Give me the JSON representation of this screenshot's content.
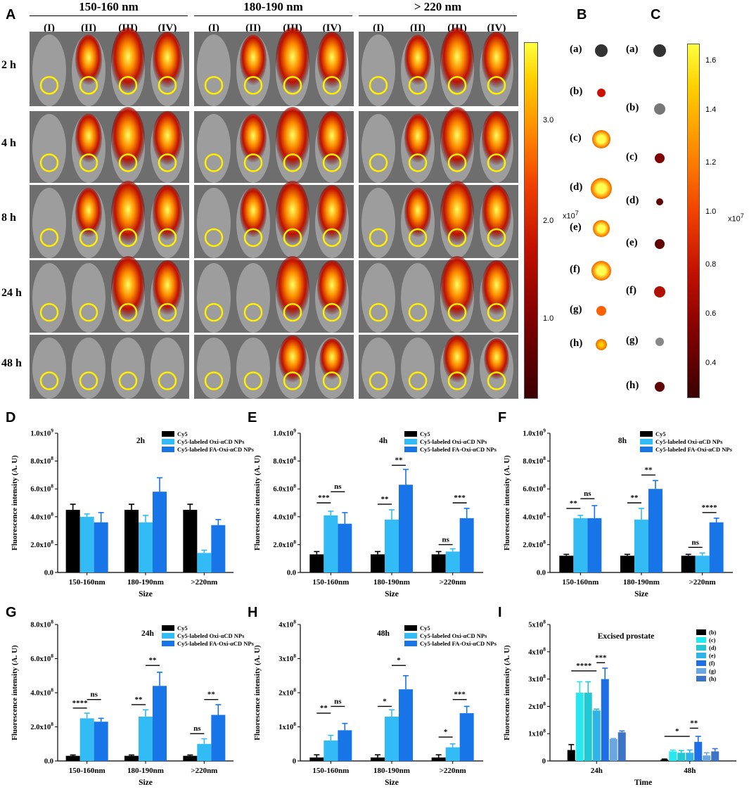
{
  "panel_letters": [
    "A",
    "B",
    "C",
    "D",
    "E",
    "F",
    "G",
    "H",
    "I"
  ],
  "imaging": {
    "groups": [
      "150-160 nm",
      "180-190 nm",
      "> 220 nm"
    ],
    "mice": [
      "(I)",
      "(II)",
      "(III)",
      "(IV)"
    ],
    "times": [
      "2 h",
      "4 h",
      "8 h",
      "24 h",
      "48 h"
    ],
    "colorbar": {
      "ticks": [
        "3.0",
        "2.0",
        "1.0"
      ],
      "unit": "x10",
      "exponent": "7"
    }
  },
  "organs_B": [
    "(a)",
    "(b)",
    "(c)",
    "(d)",
    "(e)",
    "(f)",
    "(g)",
    "(h)"
  ],
  "organs_C": [
    "(a)",
    "(b)",
    "(c)",
    "(d)",
    "(e)",
    "(f)",
    "(g)",
    "(h)"
  ],
  "colorbar_C": {
    "ticks": [
      "1.6",
      "1.4",
      "1.2",
      "1.0",
      "0.8",
      "0.6",
      "0.4"
    ],
    "unit": "x10",
    "exponent": "7"
  },
  "colors": {
    "cy5": "#000000",
    "oxi": "#33bbf5",
    "fa": "#1875e8"
  },
  "chart_data": [
    {
      "id": "D",
      "type": "bar",
      "title": "2h",
      "ylabel": "Fluorescence intensity (A. U)",
      "xlabel": "Size",
      "categories": [
        "150-160nm",
        "180-190nm",
        ">220nm"
      ],
      "yticks": [
        "0.0",
        "2.0x10",
        "4.0x10",
        "6.0x10",
        "8.0x10",
        "1.0x10"
      ],
      "yexp": [
        "",
        "8",
        "8",
        "8",
        "8",
        "9"
      ],
      "ylim": [
        0,
        10
      ],
      "legend": [
        "Cy5",
        "Cy5-labeled Oxi-αCD NPs",
        "Cy5-labeled FA-Oxi-αCD NPs"
      ],
      "series": [
        {
          "name": "Cy5",
          "values": [
            4.5,
            4.5,
            4.5
          ],
          "err": [
            0.4,
            0.4,
            0.4
          ]
        },
        {
          "name": "Cy5-labeled Oxi-αCD NPs",
          "values": [
            4.0,
            3.6,
            1.4
          ],
          "err": [
            0.2,
            0.5,
            0.2
          ]
        },
        {
          "name": "Cy5-labeled FA-Oxi-αCD NPs",
          "values": [
            3.6,
            5.8,
            3.4
          ],
          "err": [
            0.7,
            1.0,
            0.4
          ]
        }
      ],
      "sig": []
    },
    {
      "id": "E",
      "type": "bar",
      "title": "4h",
      "ylabel": "Fluorescence intensity (A. U)",
      "xlabel": "Size",
      "categories": [
        "150-160nm",
        "180-190nm",
        ">220nm"
      ],
      "yticks": [
        "0.0",
        "2.0x10",
        "4.0x10",
        "6.0x10",
        "8.0x10",
        "1.0x10"
      ],
      "yexp": [
        "",
        "8",
        "8",
        "8",
        "8",
        "9"
      ],
      "ylim": [
        0,
        10
      ],
      "legend": [
        "Cy5",
        "Cy5-labeled Oxi-αCD NPs",
        "Cy5-labeled FA-Oxi-αCD NPs"
      ],
      "series": [
        {
          "name": "Cy5",
          "values": [
            1.3,
            1.3,
            1.3
          ],
          "err": [
            0.2,
            0.2,
            0.2
          ]
        },
        {
          "name": "Cy5-labeled Oxi-αCD NPs",
          "values": [
            4.1,
            3.8,
            1.5
          ],
          "err": [
            0.3,
            0.7,
            0.2
          ]
        },
        {
          "name": "Cy5-labeled FA-Oxi-αCD NPs",
          "values": [
            3.5,
            6.3,
            3.9
          ],
          "err": [
            0.8,
            1.1,
            0.7
          ]
        }
      ],
      "sig": [
        {
          "cat": 0,
          "from": 0,
          "to": 1,
          "y": 5.0,
          "text": "***"
        },
        {
          "cat": 0,
          "from": 1,
          "to": 2,
          "y": 5.8,
          "text": "ns"
        },
        {
          "cat": 1,
          "from": 0,
          "to": 1,
          "y": 4.9,
          "text": "**"
        },
        {
          "cat": 1,
          "from": 1,
          "to": 2,
          "y": 7.7,
          "text": "**"
        },
        {
          "cat": 2,
          "from": 0,
          "to": 1,
          "y": 2.0,
          "text": "ns"
        },
        {
          "cat": 2,
          "from": 1,
          "to": 2,
          "y": 5.0,
          "text": "***"
        }
      ]
    },
    {
      "id": "F",
      "type": "bar",
      "title": "8h",
      "ylabel": "Fluorescence intensity (A. U)",
      "xlabel": "Size",
      "categories": [
        "150-160nm",
        "180-190nm",
        ">220nm"
      ],
      "yticks": [
        "0.0",
        "2.0x10",
        "4.0x10",
        "6.0x10",
        "8.0x10",
        "1.0x10"
      ],
      "yexp": [
        "",
        "8",
        "8",
        "8",
        "8",
        "9"
      ],
      "ylim": [
        0,
        10
      ],
      "legend": [
        "Cy5",
        "Cy5-labeled Oxi-αCD NPs",
        "Cy5-labeled FA-Oxi-αCD NPs"
      ],
      "series": [
        {
          "name": "Cy5",
          "values": [
            1.2,
            1.2,
            1.2
          ],
          "err": [
            0.1,
            0.1,
            0.1
          ]
        },
        {
          "name": "Cy5-labeled Oxi-αCD NPs",
          "values": [
            3.9,
            3.8,
            1.2
          ],
          "err": [
            0.2,
            0.8,
            0.2
          ]
        },
        {
          "name": "Cy5-labeled FA-Oxi-αCD NPs",
          "values": [
            3.9,
            6.0,
            3.6
          ],
          "err": [
            0.9,
            0.6,
            0.3
          ]
        }
      ],
      "sig": [
        {
          "cat": 0,
          "from": 0,
          "to": 1,
          "y": 4.6,
          "text": "**"
        },
        {
          "cat": 0,
          "from": 1,
          "to": 2,
          "y": 5.3,
          "text": "ns"
        },
        {
          "cat": 1,
          "from": 0,
          "to": 1,
          "y": 5.0,
          "text": "**"
        },
        {
          "cat": 1,
          "from": 1,
          "to": 2,
          "y": 7.0,
          "text": "**"
        },
        {
          "cat": 2,
          "from": 0,
          "to": 1,
          "y": 1.8,
          "text": "ns"
        },
        {
          "cat": 2,
          "from": 1,
          "to": 2,
          "y": 4.3,
          "text": "****"
        }
      ]
    },
    {
      "id": "G",
      "type": "bar",
      "title": "24h",
      "ylabel": "Fluorescence intensity (A. U)",
      "xlabel": "Size",
      "categories": [
        "150-160nm",
        "180-190nm",
        ">220nm"
      ],
      "yticks": [
        "0.0",
        "2.0x10",
        "4.0x10",
        "6.0x10",
        "8.0x10"
      ],
      "yexp": [
        "",
        "8",
        "8",
        "8",
        "8"
      ],
      "ylim": [
        0,
        8
      ],
      "legend": [
        "Cy5",
        "Cy5-labeled Oxi-αCD NPs",
        "Cy5-labeled FA-Oxi-αCD NPs"
      ],
      "series": [
        {
          "name": "Cy5",
          "values": [
            0.3,
            0.3,
            0.3
          ],
          "err": [
            0.05,
            0.05,
            0.05
          ]
        },
        {
          "name": "Cy5-labeled Oxi-αCD NPs",
          "values": [
            2.5,
            2.6,
            1.0
          ],
          "err": [
            0.3,
            0.4,
            0.3
          ]
        },
        {
          "name": "Cy5-labeled FA-Oxi-αCD NPs",
          "values": [
            2.3,
            4.4,
            2.7
          ],
          "err": [
            0.2,
            0.8,
            0.6
          ]
        }
      ],
      "sig": [
        {
          "cat": 0,
          "from": 0,
          "to": 1,
          "y": 3.1,
          "text": "****"
        },
        {
          "cat": 0,
          "from": 1,
          "to": 2,
          "y": 3.6,
          "text": "ns"
        },
        {
          "cat": 1,
          "from": 0,
          "to": 1,
          "y": 3.3,
          "text": "**"
        },
        {
          "cat": 1,
          "from": 1,
          "to": 2,
          "y": 5.6,
          "text": "**"
        },
        {
          "cat": 2,
          "from": 0,
          "to": 1,
          "y": 1.6,
          "text": "ns"
        },
        {
          "cat": 2,
          "from": 1,
          "to": 2,
          "y": 3.6,
          "text": "**"
        }
      ]
    },
    {
      "id": "H",
      "type": "bar",
      "title": "48h",
      "ylabel": "Fluorescence intensity (A. U)",
      "xlabel": "Size",
      "categories": [
        "150-160nm",
        "180-190nm",
        ">220nm"
      ],
      "yticks": [
        "0",
        "1x10",
        "2x10",
        "3x10",
        "4x10"
      ],
      "yexp": [
        "",
        "8",
        "8",
        "8",
        "8"
      ],
      "ylim": [
        0,
        4
      ],
      "legend": [
        "Cy5",
        "Cy5-labeled Oxi-αCD NPs",
        "Cy5-labeled FA-Oxi-αCD NPs"
      ],
      "series": [
        {
          "name": "Cy5",
          "values": [
            0.1,
            0.1,
            0.1
          ],
          "err": [
            0.08,
            0.08,
            0.08
          ]
        },
        {
          "name": "Cy5-labeled Oxi-αCD NPs",
          "values": [
            0.6,
            1.3,
            0.4
          ],
          "err": [
            0.15,
            0.2,
            0.1
          ]
        },
        {
          "name": "Cy5-labeled FA-Oxi-αCD NPs",
          "values": [
            0.9,
            2.1,
            1.4
          ],
          "err": [
            0.2,
            0.4,
            0.2
          ]
        }
      ],
      "sig": [
        {
          "cat": 0,
          "from": 0,
          "to": 1,
          "y": 1.4,
          "text": "**"
        },
        {
          "cat": 0,
          "from": 1,
          "to": 2,
          "y": 1.6,
          "text": "ns"
        },
        {
          "cat": 1,
          "from": 0,
          "to": 1,
          "y": 1.6,
          "text": "*"
        },
        {
          "cat": 1,
          "from": 1,
          "to": 2,
          "y": 2.8,
          "text": "*"
        },
        {
          "cat": 2,
          "from": 0,
          "to": 1,
          "y": 0.7,
          "text": "*"
        },
        {
          "cat": 2,
          "from": 1,
          "to": 2,
          "y": 1.8,
          "text": "***"
        }
      ]
    },
    {
      "id": "I",
      "type": "bar",
      "title": "Excised prostate",
      "ylabel": "Fluorescence intensity (A. U)",
      "xlabel": "Time",
      "categories": [
        "24h",
        "48h"
      ],
      "yticks": [
        "0",
        "1x10",
        "2x10",
        "3x10",
        "4x10",
        "5x10"
      ],
      "yexp": [
        "",
        "8",
        "8",
        "8",
        "8",
        "8"
      ],
      "ylim": [
        0,
        5
      ],
      "legend": [
        "(b)",
        "(c)",
        "(d)",
        "(e)",
        "(f)",
        "(g)",
        "(h)"
      ],
      "series": [
        {
          "name": "(b)",
          "values": [
            0.4,
            0.05
          ],
          "err": [
            0.2,
            0.02
          ]
        },
        {
          "name": "(c)",
          "values": [
            2.5,
            0.35
          ],
          "err": [
            0.4,
            0.05
          ]
        },
        {
          "name": "(d)",
          "values": [
            2.5,
            0.3
          ],
          "err": [
            0.4,
            0.08
          ]
        },
        {
          "name": "(e)",
          "values": [
            1.85,
            0.3
          ],
          "err": [
            0.05,
            0.1
          ]
        },
        {
          "name": "(f)",
          "values": [
            3.0,
            0.7
          ],
          "err": [
            0.4,
            0.2
          ]
        },
        {
          "name": "(g)",
          "values": [
            0.8,
            0.2
          ],
          "err": [
            0.02,
            0.1
          ]
        },
        {
          "name": "(h)",
          "values": [
            1.05,
            0.35
          ],
          "err": [
            0.05,
            0.1
          ]
        }
      ],
      "sig": [
        {
          "cat": 0,
          "from": 0,
          "to": 3,
          "y": 3.3,
          "text": "****"
        },
        {
          "cat": 0,
          "from": 3,
          "to": 4,
          "y": 3.6,
          "text": "***"
        },
        {
          "cat": 1,
          "from": 0,
          "to": 3,
          "y": 0.9,
          "text": "*"
        },
        {
          "cat": 1,
          "from": 3,
          "to": 4,
          "y": 1.2,
          "text": "**"
        }
      ]
    }
  ]
}
